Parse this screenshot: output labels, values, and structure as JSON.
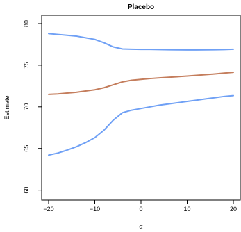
{
  "chart_data": {
    "type": "line",
    "title": "Placebo",
    "xlabel": "α",
    "ylabel": "Estimate",
    "xlim": [
      -21.5,
      21.5
    ],
    "ylim": [
      58.8,
      81.0
    ],
    "xticks": [
      -20,
      -10,
      0,
      10,
      20
    ],
    "xtick_labels": [
      "−20",
      "−10",
      "0",
      "10",
      "20"
    ],
    "yticks": [
      60,
      65,
      70,
      75,
      80
    ],
    "ytick_labels": [
      "60",
      "65",
      "70",
      "75",
      "80"
    ],
    "grid": false,
    "legend": "none",
    "colors": {
      "bounds": "#6fa0f5",
      "estimate": "#c47d5c"
    },
    "series": [
      {
        "role": "upper",
        "color": "#6fa0f5",
        "x": [
          -20,
          -18,
          -16,
          -14,
          -12,
          -10,
          -8,
          -6,
          -4,
          -2,
          0,
          2,
          4,
          6,
          8,
          10,
          12,
          14,
          16,
          18,
          20
        ],
        "values": [
          78.8,
          78.7,
          78.6,
          78.5,
          78.3,
          78.1,
          77.7,
          77.2,
          76.95,
          76.92,
          76.9,
          76.9,
          76.88,
          76.86,
          76.85,
          76.84,
          76.84,
          76.85,
          76.86,
          76.88,
          76.92
        ]
      },
      {
        "role": "estimate",
        "color": "#c47d5c",
        "x": [
          -20,
          -18,
          -16,
          -14,
          -12,
          -10,
          -8,
          -6,
          -4,
          -2,
          0,
          2,
          4,
          6,
          8,
          10,
          12,
          14,
          16,
          18,
          20
        ],
        "values": [
          71.5,
          71.55,
          71.65,
          71.75,
          71.9,
          72.05,
          72.3,
          72.65,
          73.0,
          73.2,
          73.3,
          73.4,
          73.48,
          73.55,
          73.62,
          73.7,
          73.78,
          73.86,
          73.95,
          74.05,
          74.15
        ]
      },
      {
        "role": "lower",
        "color": "#6fa0f5",
        "x": [
          -20,
          -18,
          -16,
          -14,
          -12,
          -10,
          -8,
          -6,
          -4,
          -2,
          0,
          2,
          4,
          6,
          8,
          10,
          12,
          14,
          16,
          18,
          20
        ],
        "values": [
          64.2,
          64.45,
          64.8,
          65.2,
          65.7,
          66.3,
          67.2,
          68.4,
          69.3,
          69.6,
          69.8,
          70.0,
          70.2,
          70.35,
          70.5,
          70.65,
          70.8,
          70.95,
          71.1,
          71.25,
          71.35
        ]
      }
    ]
  }
}
